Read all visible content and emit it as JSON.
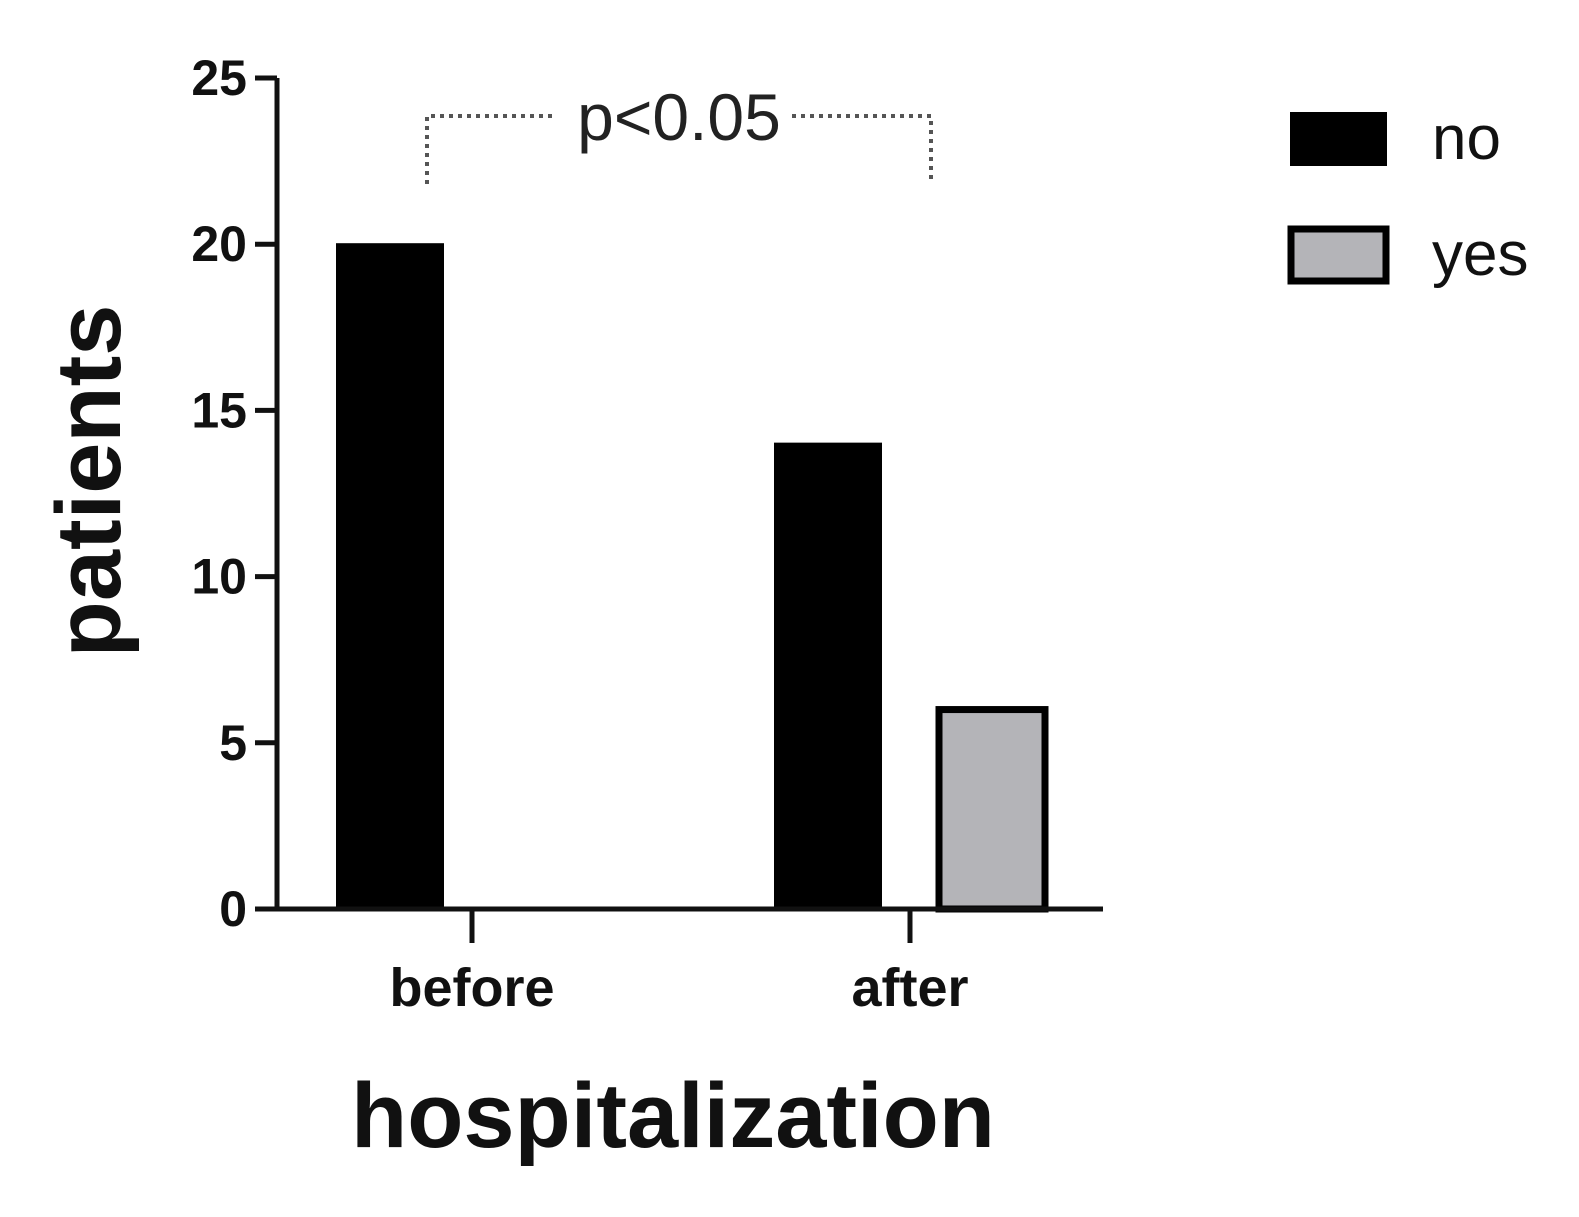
{
  "chart_data": {
    "type": "bar",
    "xlabel": "hospitalization",
    "ylabel": "patients",
    "categories": [
      "before",
      "after"
    ],
    "series": [
      {
        "name": "no",
        "values": [
          20,
          14
        ],
        "color": "#000000"
      },
      {
        "name": "yes",
        "values": [
          0,
          6
        ],
        "color": "#b4b4b8"
      }
    ],
    "ylim": [
      0,
      25
    ],
    "yticks": [
      0,
      5,
      10,
      15,
      20,
      25
    ],
    "grid": false,
    "legend_position": "top-right",
    "annotation": {
      "text": "p<0.05",
      "style": "dotted bracket",
      "spans_categories": [
        "before",
        "after"
      ]
    }
  }
}
